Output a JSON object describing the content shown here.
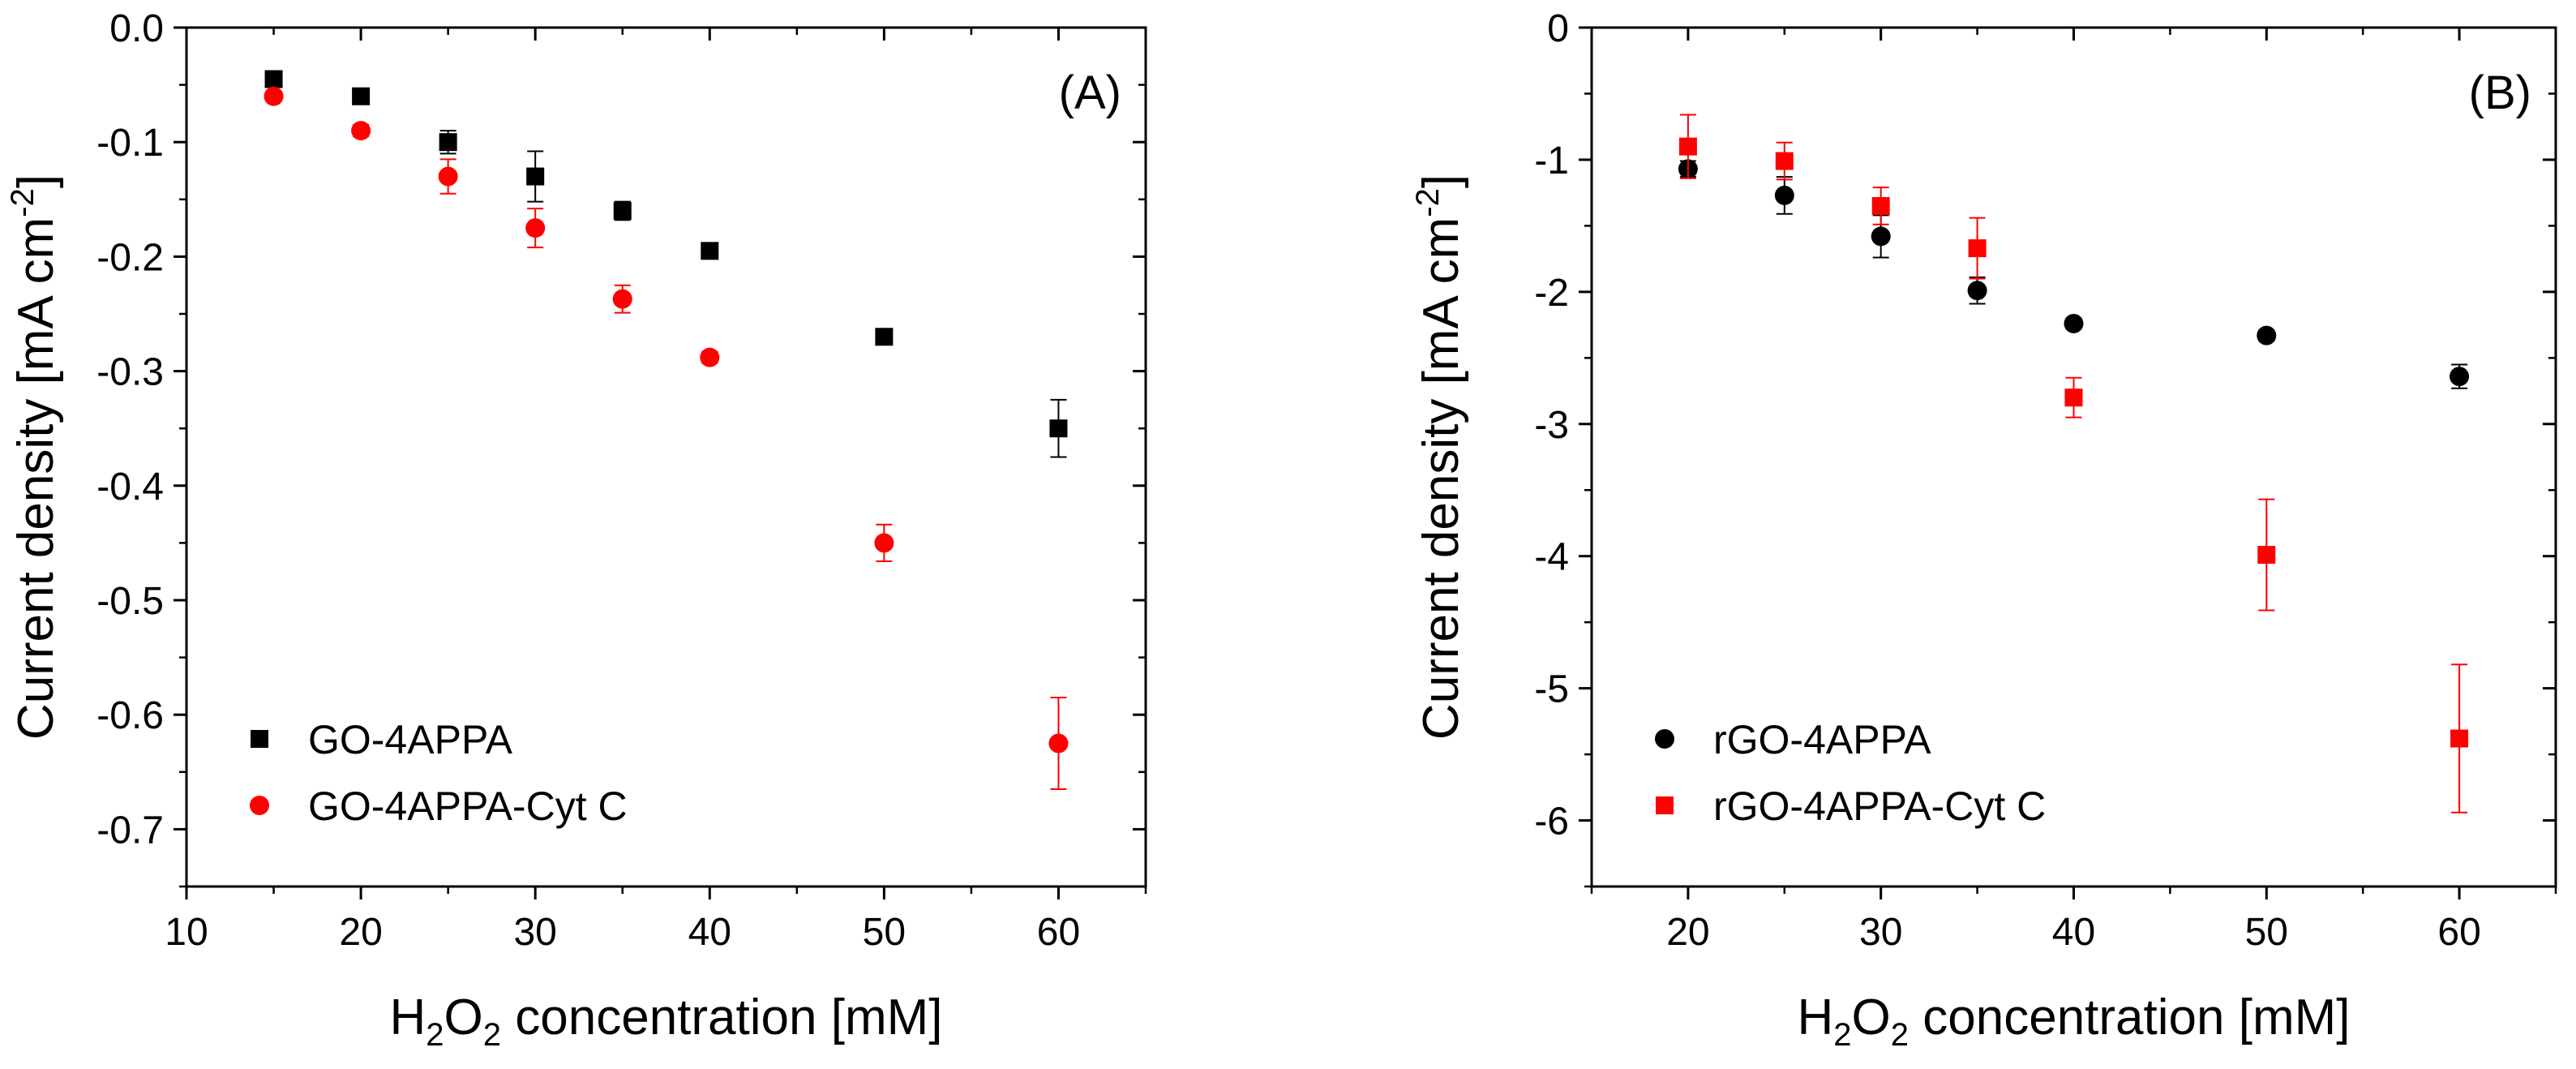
{
  "chart_data": [
    {
      "type": "scatter",
      "panel_label": "(A)",
      "title": "",
      "xlabel": {
        "pre": "H",
        "sub1": "2",
        "mid": "O",
        "sub2": "2",
        "post": " concentration [mM]"
      },
      "ylabel": {
        "pre": "Current density [mA cm",
        "sup": "-2",
        "post": "]"
      },
      "xlim": [
        10,
        65
      ],
      "ylim": [
        -0.75,
        0.0
      ],
      "xticks": [
        10,
        20,
        30,
        40,
        50,
        60
      ],
      "xtick_labels": [
        "10",
        "20",
        "30",
        "40",
        "50",
        "60"
      ],
      "yticks": [
        0.0,
        -0.1,
        -0.2,
        -0.3,
        -0.4,
        -0.5,
        -0.6,
        -0.7
      ],
      "ytick_labels": [
        "0.0",
        "-0.1",
        "-0.2",
        "-0.3",
        "-0.4",
        "-0.5",
        "-0.6",
        "-0.7"
      ],
      "legend_position": "bottom-left",
      "series": [
        {
          "name": "GO-4APPA",
          "marker": "square",
          "color": "#000000",
          "x": [
            15,
            20,
            25,
            30,
            35,
            40,
            50,
            60
          ],
          "y": [
            -0.045,
            -0.06,
            -0.1,
            -0.13,
            -0.16,
            -0.195,
            -0.27,
            -0.35
          ],
          "err": [
            0.006,
            0.004,
            0.01,
            0.022,
            0.008,
            0.004,
            0.005,
            0.025
          ]
        },
        {
          "name": "GO-4APPA-Cyt C",
          "marker": "circle",
          "color": "#ff0000",
          "x": [
            15,
            20,
            25,
            30,
            35,
            40,
            50,
            60
          ],
          "y": [
            -0.06,
            -0.09,
            -0.13,
            -0.175,
            -0.237,
            -0.288,
            -0.45,
            -0.625
          ],
          "err": [
            0.004,
            0.005,
            0.015,
            0.017,
            0.012,
            0.005,
            0.016,
            0.04
          ]
        }
      ]
    },
    {
      "type": "scatter",
      "panel_label": "(B)",
      "title": "",
      "xlabel": {
        "pre": "H",
        "sub1": "2",
        "mid": "O",
        "sub2": "2",
        "post": " concentration [mM]"
      },
      "ylabel": {
        "pre": "Current density [mA cm",
        "sup": "-2",
        "post": "]"
      },
      "xlim": [
        15,
        65
      ],
      "ylim": [
        -6.5,
        0
      ],
      "xticks": [
        20,
        30,
        40,
        50,
        60
      ],
      "xtick_labels": [
        "20",
        "30",
        "40",
        "50",
        "60"
      ],
      "yticks": [
        0,
        -1,
        -2,
        -3,
        -4,
        -5,
        -6
      ],
      "ytick_labels": [
        "0",
        "-1",
        "-2",
        "-3",
        "-4",
        "-5",
        "-6"
      ],
      "legend_position": "bottom-left",
      "series": [
        {
          "name": "rGO-4APPA",
          "marker": "circle",
          "color": "#000000",
          "x": [
            20,
            25,
            30,
            35,
            40,
            50,
            60
          ],
          "y": [
            -1.07,
            -1.27,
            -1.58,
            -1.99,
            -2.24,
            -2.33,
            -2.64
          ],
          "err": [
            0.06,
            0.14,
            0.16,
            0.1,
            0.04,
            0.04,
            0.09
          ]
        },
        {
          "name": "rGO-4APPA-Cyt C",
          "marker": "square",
          "color": "#ff0000",
          "x": [
            20,
            25,
            30,
            35,
            40,
            50,
            60
          ],
          "y": [
            -0.9,
            -1.01,
            -1.35,
            -1.67,
            -2.8,
            -3.99,
            -5.38
          ],
          "err": [
            0.24,
            0.14,
            0.14,
            0.23,
            0.15,
            0.42,
            0.56
          ]
        }
      ]
    }
  ]
}
